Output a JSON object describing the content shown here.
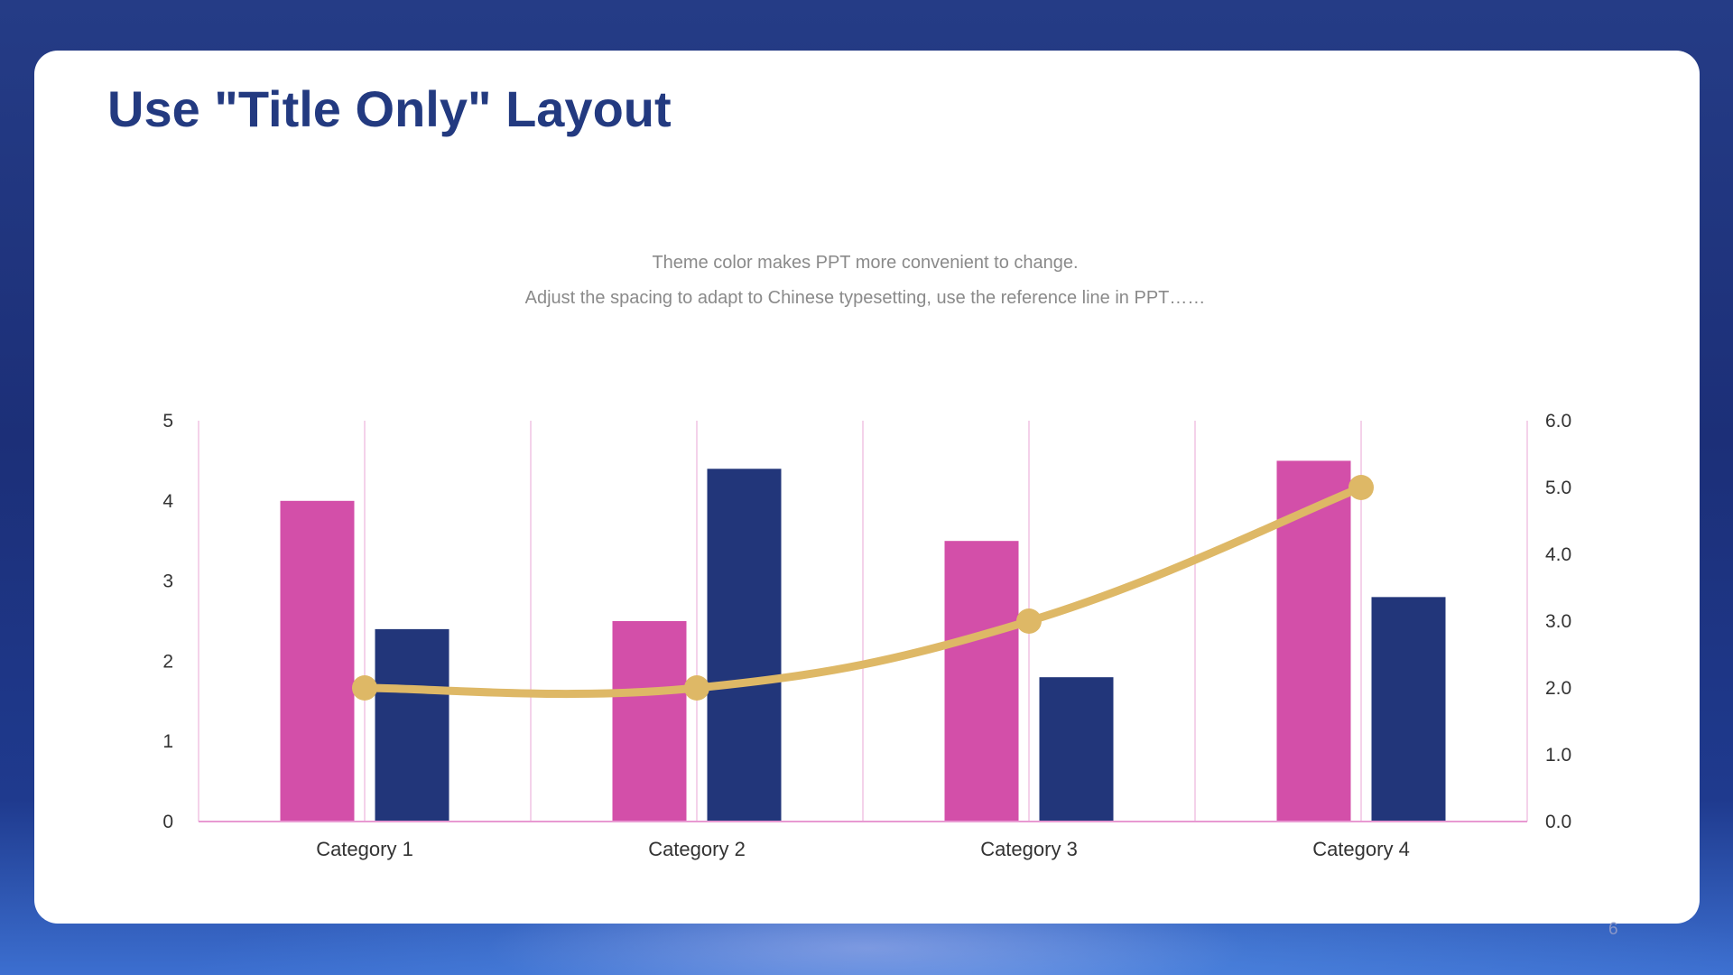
{
  "slide": {
    "title": "Use \"Title Only\" Layout",
    "subtitle_line1": "Theme color makes PPT more convenient  to change.",
    "subtitle_line2": "Adjust  the  spacing  to  adapt  to  Chinese  typesetting,  use  the  reference  line  in  PPT……",
    "page_number": "6"
  },
  "chart_data": {
    "type": "bar",
    "categories": [
      "Category 1",
      "Category 2",
      "Category 3",
      "Category 4"
    ],
    "series": [
      {
        "type": "bar",
        "axis": "left",
        "color": "#d34fa9",
        "values": [
          4.0,
          2.5,
          3.5,
          4.5
        ]
      },
      {
        "type": "bar",
        "axis": "left",
        "color": "#22367a",
        "values": [
          2.4,
          4.4,
          1.8,
          2.8
        ]
      },
      {
        "type": "line",
        "axis": "right",
        "smooth": true,
        "color": "#deb866",
        "values": [
          2.0,
          2.0,
          3.0,
          5.0
        ]
      }
    ],
    "y_left": {
      "min": 0,
      "max": 5,
      "ticks": [
        "0",
        "1",
        "2",
        "3",
        "4",
        "5"
      ]
    },
    "y_right": {
      "min": 0,
      "max": 6,
      "ticks": [
        "0.0",
        "1.0",
        "2.0",
        "3.0",
        "4.0",
        "5.0",
        "6.0"
      ]
    },
    "grid": true,
    "grid_color": "#f1c4e4",
    "axis_color": "#e89ad2",
    "legend": "none"
  }
}
